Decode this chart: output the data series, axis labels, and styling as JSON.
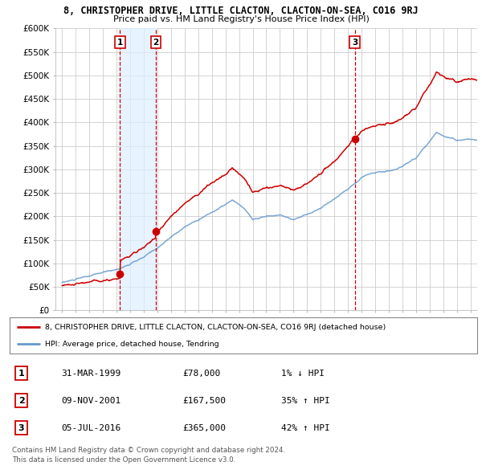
{
  "title": "8, CHRISTOPHER DRIVE, LITTLE CLACTON, CLACTON-ON-SEA, CO16 9RJ",
  "subtitle": "Price paid vs. HM Land Registry's House Price Index (HPI)",
  "ylabel_ticks": [
    "£0",
    "£50K",
    "£100K",
    "£150K",
    "£200K",
    "£250K",
    "£300K",
    "£350K",
    "£400K",
    "£450K",
    "£500K",
    "£550K",
    "£600K"
  ],
  "ytick_values": [
    0,
    50000,
    100000,
    150000,
    200000,
    250000,
    300000,
    350000,
    400000,
    450000,
    500000,
    550000,
    600000
  ],
  "xlim_start": 1994.5,
  "xlim_end": 2025.5,
  "ylim": [
    0,
    600000
  ],
  "sale_dates": [
    1999.25,
    2001.87,
    2016.5
  ],
  "sale_prices": [
    78000,
    167500,
    365000
  ],
  "sale_labels": [
    "1",
    "2",
    "3"
  ],
  "hpi_color": "#6699cc",
  "price_color": "#cc0000",
  "vline_color": "#cc0000",
  "shade_color": "#ddeeff",
  "grid_color": "#cccccc",
  "bg_color": "#ffffff",
  "legend_label_red": "8, CHRISTOPHER DRIVE, LITTLE CLACTON, CLACTON-ON-SEA, CO16 9RJ (detached house)",
  "legend_label_blue": "HPI: Average price, detached house, Tendring",
  "table_rows": [
    [
      "1",
      "31-MAR-1999",
      "£78,000",
      "1% ↓ HPI"
    ],
    [
      "2",
      "09-NOV-2001",
      "£167,500",
      "35% ↑ HPI"
    ],
    [
      "3",
      "05-JUL-2016",
      "£365,000",
      "42% ↑ HPI"
    ]
  ],
  "footer": "Contains HM Land Registry data © Crown copyright and database right 2024.\nThis data is licensed under the Open Government Licence v3.0."
}
